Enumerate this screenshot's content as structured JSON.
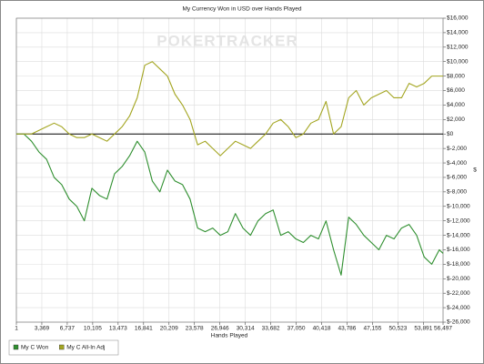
{
  "chart_data": {
    "type": "line",
    "title": "My Currency Won in USD over Hands Played",
    "watermark": "POKERTRACKER",
    "x_label": "Hands Played",
    "y_label": "$",
    "x": [
      1,
      1000,
      2000,
      3000,
      4000,
      5000,
      6000,
      7000,
      8000,
      9000,
      10000,
      11000,
      12000,
      13000,
      14000,
      15000,
      16000,
      17000,
      18000,
      19000,
      20000,
      21000,
      22000,
      23000,
      24000,
      25000,
      26000,
      27000,
      28000,
      29000,
      30000,
      31000,
      32000,
      33000,
      34000,
      35000,
      36000,
      37000,
      38000,
      39000,
      40000,
      41000,
      42000,
      43000,
      44000,
      45000,
      46000,
      47000,
      48000,
      49000,
      50000,
      51000,
      52000,
      53000,
      54000,
      55000,
      56000,
      56497
    ],
    "series": [
      {
        "name": "My C Won",
        "color": "#2f8f2f",
        "values": [
          0,
          0,
          -1000,
          -2500,
          -3500,
          -6000,
          -7000,
          -9000,
          -10000,
          -12000,
          -7500,
          -8500,
          -9000,
          -5500,
          -4500,
          -3000,
          -1000,
          -2500,
          -6500,
          -8000,
          -5000,
          -6500,
          -7000,
          -9000,
          -13000,
          -13500,
          -13000,
          -14000,
          -13500,
          -11000,
          -13000,
          -14000,
          -12000,
          -11000,
          -10500,
          -14000,
          -13500,
          -14500,
          -15000,
          -14000,
          -14500,
          -12000,
          -16000,
          -19500,
          -11500,
          -12500,
          -14000,
          -15000,
          -16000,
          -14000,
          -14500,
          -13000,
          -12500,
          -14000,
          -17000,
          -18000,
          -16000,
          -16500
        ]
      },
      {
        "name": "My C All-In Adj",
        "color": "#a3a520",
        "values": [
          0,
          0,
          0,
          500,
          1000,
          1500,
          1000,
          0,
          -500,
          -500,
          0,
          -500,
          -1000,
          0,
          1000,
          2500,
          5000,
          9500,
          10000,
          9000,
          8000,
          5500,
          4000,
          2000,
          -1500,
          -1000,
          -2000,
          -3000,
          -2000,
          -1000,
          -1500,
          -2000,
          -1000,
          0,
          1500,
          2000,
          1000,
          -500,
          0,
          1500,
          2000,
          4500,
          0,
          1000,
          5000,
          6000,
          4000,
          5000,
          5500,
          6000,
          5000,
          5000,
          7000,
          6500,
          7000,
          8000,
          8000,
          8000
        ]
      }
    ],
    "xlim": [
      1,
      56497
    ],
    "xticks": [
      1,
      {
        "value": 3369,
        "label": "3,369"
      },
      {
        "value": 6737,
        "label": "6,737"
      },
      {
        "value": 10105,
        "label": "10,105"
      },
      {
        "value": 13473,
        "label": "13,473"
      },
      {
        "value": 16841,
        "label": "16,841"
      },
      {
        "value": 20209,
        "label": "20,209"
      },
      {
        "value": 23578,
        "label": "23,578"
      },
      {
        "value": 26946,
        "label": "26,946"
      },
      {
        "value": 30314,
        "label": "30,314"
      },
      {
        "value": 33682,
        "label": "33,682"
      },
      {
        "value": 37050,
        "label": "37,050"
      },
      {
        "value": 40418,
        "label": "40,418"
      },
      {
        "value": 43786,
        "label": "43,786"
      },
      {
        "value": 47155,
        "label": "47,155"
      },
      {
        "value": 50523,
        "label": "50,523"
      },
      {
        "value": 53891,
        "label": "53,891"
      },
      {
        "value": 56497,
        "label": "56,497"
      }
    ],
    "ylim": [
      -26000,
      16000
    ],
    "yticks": [
      {
        "value": 16000,
        "label": "$16,000"
      },
      {
        "value": 14000,
        "label": "$14,000"
      },
      {
        "value": 12000,
        "label": "$12,000"
      },
      {
        "value": 10000,
        "label": "$10,000"
      },
      {
        "value": 8000,
        "label": "$8,000"
      },
      {
        "value": 6000,
        "label": "$6,000"
      },
      {
        "value": 4000,
        "label": "$4,000"
      },
      {
        "value": 2000,
        "label": "$2,000"
      },
      {
        "value": 0,
        "label": "$0"
      },
      {
        "value": -2000,
        "label": "$-2,000"
      },
      {
        "value": -4000,
        "label": "$-4,000"
      },
      {
        "value": -6000,
        "label": "$-6,000"
      },
      {
        "value": -8000,
        "label": "$-8,000"
      },
      {
        "value": -10000,
        "label": "$-10,000"
      },
      {
        "value": -12000,
        "label": "$-12,000"
      },
      {
        "value": -14000,
        "label": "$-14,000"
      },
      {
        "value": -16000,
        "label": "$-16,000"
      },
      {
        "value": -18000,
        "label": "$-18,000"
      },
      {
        "value": -20000,
        "label": "$-20,000"
      },
      {
        "value": -22000,
        "label": "$-22,000"
      },
      {
        "value": -24000,
        "label": "$-24,000"
      },
      {
        "value": -26000,
        "label": "$-26,000"
      }
    ],
    "grid": true,
    "legend": "bottom-left"
  }
}
